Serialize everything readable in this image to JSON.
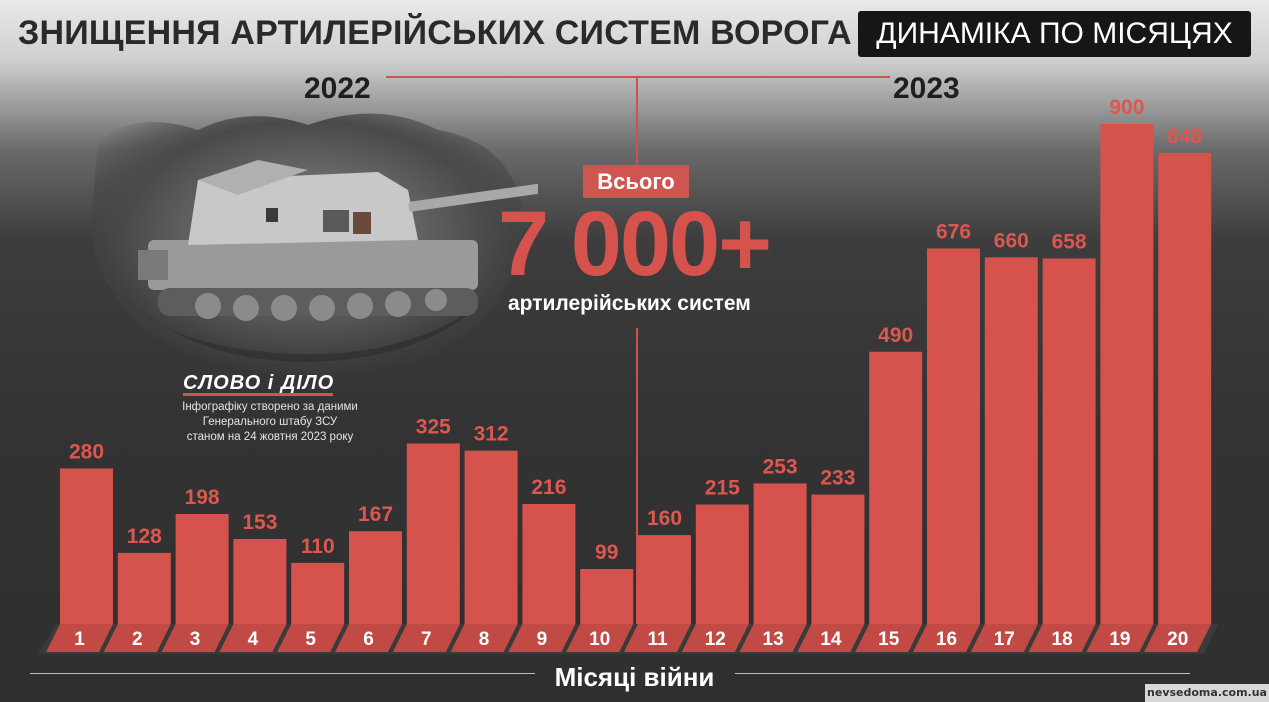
{
  "header": {
    "title": "ЗНИЩЕННЯ АРТИЛЕРІЙСЬКИХ СИСТЕМ ВОРОГА",
    "subtitle": "ДИНАМІКА ПО МІСЯЦЯХ"
  },
  "years": {
    "left": "2022",
    "right": "2023"
  },
  "total": {
    "label": "Всього",
    "value": "7 000+",
    "caption": "артилерійських систем"
  },
  "branding": {
    "logo": "СЛОВО і ДІЛО",
    "note_lines": [
      "Інфографіку створено за даними",
      "Генерального штабу ЗСУ",
      "станом на 24 жовтня 2023 року"
    ],
    "watermark": "nevsedoma.com.ua"
  },
  "colors": {
    "bar": "#d5524d",
    "bar_top": "#df5d57",
    "base": "#c24a45",
    "value_text": "#de5650",
    "accent": "#cf5650"
  },
  "chart_data": {
    "type": "bar",
    "xlabel": "Місяці війни",
    "categories": [
      "1",
      "2",
      "3",
      "4",
      "5",
      "6",
      "7",
      "8",
      "9",
      "10",
      "11",
      "12",
      "13",
      "14",
      "15",
      "16",
      "17",
      "18",
      "19",
      "20"
    ],
    "values": [
      280,
      128,
      198,
      153,
      110,
      167,
      325,
      312,
      216,
      99,
      160,
      215,
      253,
      233,
      490,
      676,
      660,
      658,
      900,
      848
    ],
    "ylim": [
      0,
      900
    ],
    "grid": false,
    "legend": "none"
  }
}
